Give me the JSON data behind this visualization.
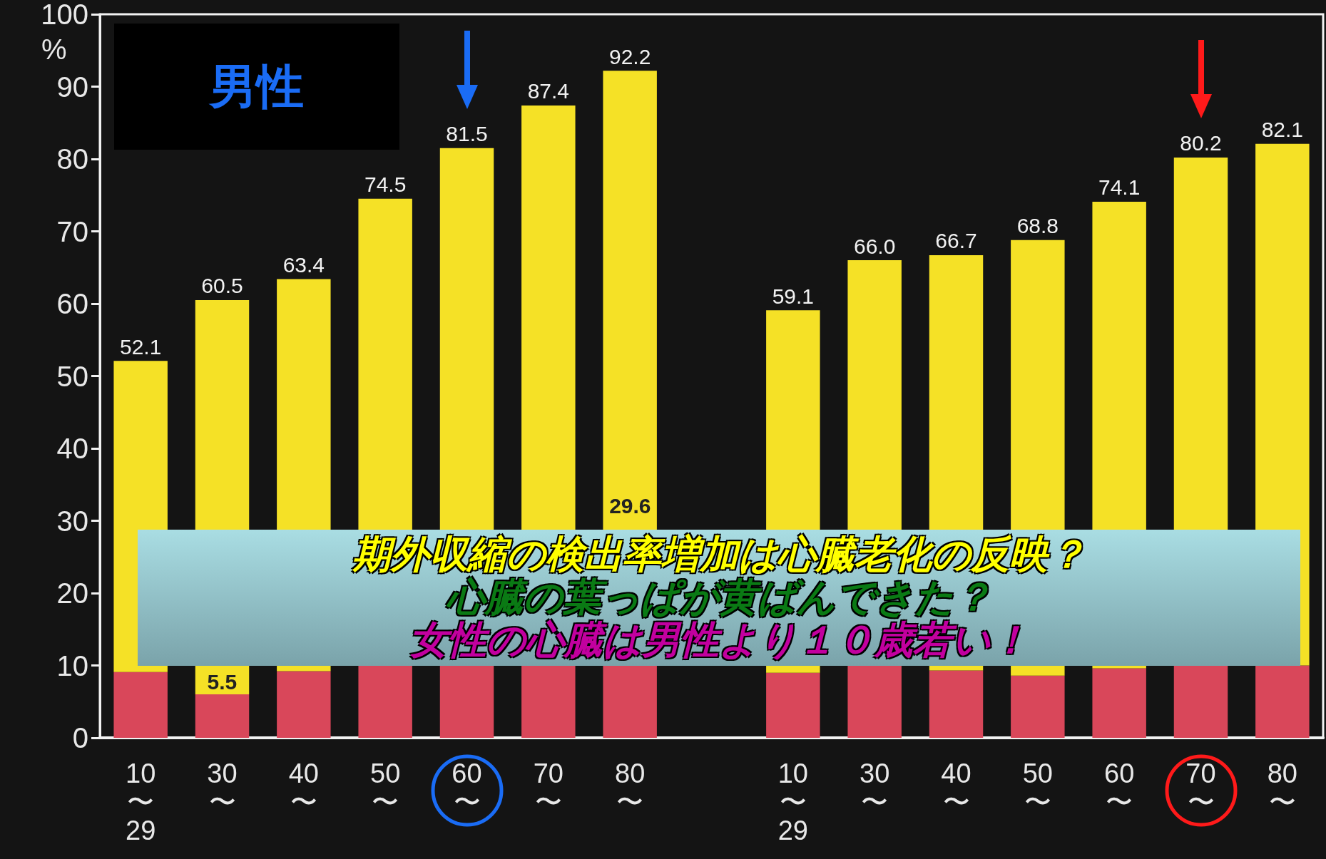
{
  "chart_data": {
    "type": "bar",
    "stacked": true,
    "ylabel": "%",
    "categories": [
      "10\n〜\n29",
      "30\n〜",
      "40\n〜",
      "50\n〜",
      "60\n〜",
      "70\n〜",
      "80\n〜",
      null,
      "10\n〜\n29",
      "30\n〜",
      "40\n〜",
      "50\n〜",
      "60\n〜",
      "70\n〜",
      "80\n〜"
    ],
    "series": [
      {
        "color": "#d9475a",
        "values": [
          9.1,
          6.0,
          9.2,
          10,
          10,
          10,
          10,
          null,
          9.0,
          10,
          9.3,
          8.6,
          9.6,
          10,
          10
        ]
      },
      {
        "color": "#f5e126",
        "values": [
          43.0,
          54.5,
          54.2,
          64.5,
          71.5,
          77.4,
          82.2,
          null,
          50.1,
          56.0,
          57.4,
          60.2,
          64.5,
          70.2,
          72.1
        ]
      }
    ],
    "totals": [
      "52.1",
      "60.5",
      "63.4",
      "74.5",
      "81.5",
      "87.4",
      "92.2",
      null,
      "59.1",
      "66.0",
      "66.7",
      "68.8",
      "74.1",
      "80.2",
      "82.1"
    ],
    "ylim": [
      0,
      100
    ],
    "yticks": [
      0,
      10,
      20,
      30,
      40,
      50,
      60,
      70,
      80,
      90,
      100
    ],
    "grid": false,
    "annotations": [
      "男性",
      "5.5",
      "29.6",
      "期外収縮の検出率増加は心臓老化の反映？",
      "心臓の葉っぱが黄ばんできた？",
      "女性の心臓は男性より１０歳若い！"
    ]
  }
}
